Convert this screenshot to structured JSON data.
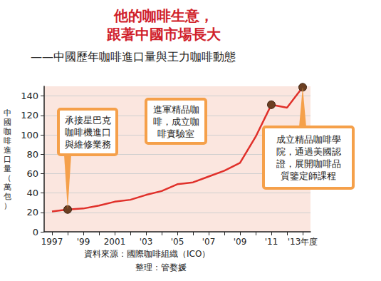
{
  "chart_data": {
    "type": "line",
    "title": "他的咖啡生意，\n跟著中國市場長大",
    "subtitle": "——中國歷年咖啡進口量與王力咖啡動態",
    "y_label": "中國咖啡進口量（萬包）",
    "categories": [
      "1997",
      null,
      "'99",
      null,
      "2001",
      null,
      "'03",
      null,
      "'05",
      null,
      "'07",
      null,
      "'09",
      null,
      "'11",
      null,
      "'13年度"
    ],
    "values": [
      21,
      23,
      24,
      27,
      31,
      33,
      38,
      42,
      49,
      51,
      57,
      63,
      71,
      98,
      131,
      128,
      149
    ],
    "color": "#e0302a",
    "ylim": [
      0,
      150
    ],
    "yticks": [
      0,
      20,
      40,
      60,
      80,
      100,
      120,
      140
    ],
    "grid": true,
    "annotations": [
      {
        "index": 1,
        "text": "承接星巴克\n咖啡機進口\n與維修業務"
      },
      {
        "index": 14,
        "text": "進軍精品咖\n啡，成立咖\n啡實驗室"
      },
      {
        "index": 16,
        "text": "成立精品咖啡學\n院，通過美國認\n證，展開咖啡品\n質鑒定師課程"
      }
    ],
    "source": "資料來源：國際咖啡組織（ICO）",
    "credit": "整理：管婺媛"
  }
}
